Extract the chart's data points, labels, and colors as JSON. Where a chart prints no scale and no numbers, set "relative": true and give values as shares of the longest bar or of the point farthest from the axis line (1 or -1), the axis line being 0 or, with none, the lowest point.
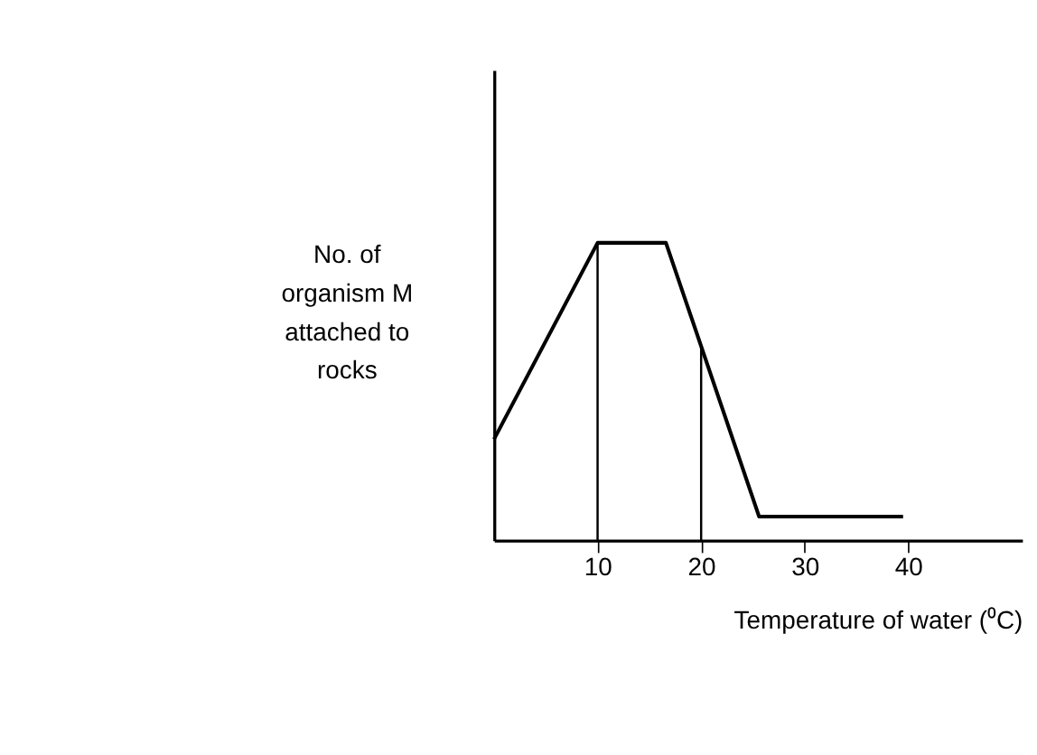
{
  "chart_data": {
    "type": "line",
    "relative": true,
    "xlabel": "Temperature of water (⁰C)",
    "ylabel": "No. of\norganism M\nattached to\nrocks",
    "x": [
      0,
      10,
      16.6,
      25.6,
      39.5
    ],
    "series": [
      {
        "color": "#000000",
        "values": [
          0.34,
          1,
          1,
          0.08,
          0.08
        ]
      }
    ],
    "xlim": [
      0,
      51
    ],
    "xticks": [
      10,
      20,
      30,
      40
    ],
    "ref_lines": [
      {
        "axis": "x",
        "value": 10,
        "color": "#000000"
      },
      {
        "axis": "x",
        "value": 20,
        "color": "#000000"
      }
    ],
    "grid": false,
    "marker": "none",
    "line_style": "solid"
  }
}
